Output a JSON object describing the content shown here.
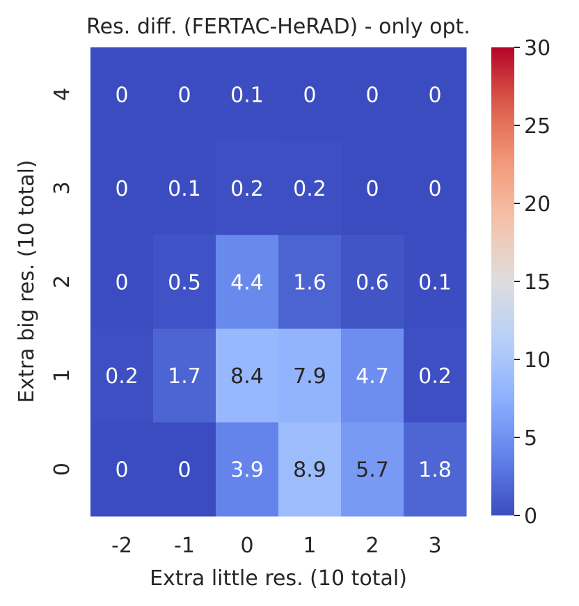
{
  "chart_data": {
    "type": "heatmap",
    "title": "Res. diff. (FERTAC-HeRAD) - only opt.",
    "xlabel": "Extra little res. (10 total)",
    "ylabel": "Extra big res. (10 total)",
    "x_categories": [
      "-2",
      "-1",
      "0",
      "1",
      "2",
      "3"
    ],
    "y_categories": [
      "4",
      "3",
      "2",
      "1",
      "0"
    ],
    "values": [
      [
        0,
        0,
        0.1,
        0,
        0,
        0
      ],
      [
        0,
        0.1,
        0.2,
        0.2,
        0,
        0
      ],
      [
        0,
        0.5,
        4.4,
        1.6,
        0.6,
        0.1
      ],
      [
        0.2,
        1.7,
        8.4,
        7.9,
        4.7,
        0.2
      ],
      [
        0,
        0,
        3.9,
        8.9,
        5.7,
        1.8
      ]
    ],
    "colorbar": {
      "colormap": "coolwarm",
      "vmin": 0,
      "vmax": 30,
      "ticks": [
        0,
        5,
        10,
        15,
        20,
        25,
        30
      ]
    }
  }
}
